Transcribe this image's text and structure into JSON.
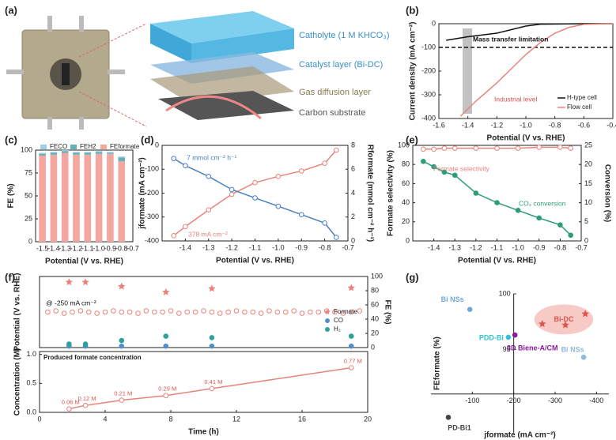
{
  "panel_labels": [
    "(a)",
    "(b)",
    "(c)",
    "(d)",
    "(e)",
    "(f)",
    "(g)"
  ],
  "panel_a": {
    "labels": [
      "Catholyte (1 M KHCO₃)",
      "Catalyst layer (Bi-DC)",
      "Gas diffusion layer",
      "Carbon substrate"
    ]
  },
  "chart_data": [
    {
      "type": "line",
      "xlabel": "Potential (V vs. RHE)",
      "ylabel": "Current density (mA cm⁻²)",
      "xlim": [
        -1.6,
        -0.4
      ],
      "xticks": [
        -1.6,
        -1.4,
        -1.2,
        {
          "value": -1,
          "label": "-1.0"
        },
        -0.8,
        -0.6,
        -0.4
      ],
      "ylim": [
        -400,
        0
      ],
      "yticks": [
        0,
        -100,
        -200,
        -300,
        -400
      ],
      "hline": -100,
      "legend": "lower right",
      "annotations": [
        "Mass transfer limitation",
        "Industrial level"
      ],
      "series": [
        {
          "name": "H-type cell",
          "color": "#111111",
          "x": [
            -1.55,
            -1.4,
            -1.2,
            -1.1,
            -1.0,
            -0.9,
            -0.6,
            -0.4
          ],
          "values": [
            -70,
            -55,
            -40,
            -25,
            -10,
            -2,
            0,
            0
          ]
        },
        {
          "name": "Flow cell",
          "color": "#e8837c",
          "x": [
            -1.45,
            -1.35,
            -1.2,
            -1.1,
            -1.0,
            -0.9,
            -0.8,
            -0.7,
            -0.6,
            -0.4
          ],
          "values": [
            -390,
            -330,
            -250,
            -190,
            -130,
            -80,
            -40,
            -15,
            -3,
            0
          ]
        }
      ]
    },
    {
      "type": "bar",
      "xlabel": "Potential (V vs. RHE)",
      "ylabel": "FE (%)",
      "x": [
        -1.5,
        -1.4,
        -1.3,
        -1.2,
        -1.1,
        -1.0,
        -0.9,
        -0.8
      ],
      "xlim": [
        -1.56,
        -0.7
      ],
      "xticks": [
        -1.5,
        -1.4,
        -1.3,
        -1.2,
        -1.1,
        {
          "value": -1,
          "label": "-1.0"
        },
        -0.9,
        -0.8,
        -0.7
      ],
      "ylim": [
        0,
        100
      ],
      "yticks": [
        0,
        25,
        50,
        75,
        100
      ],
      "legend": "upper center",
      "series": [
        {
          "name": "FECO",
          "color": "#9dd0e8",
          "values": [
            1,
            1,
            1,
            1,
            1,
            1,
            1,
            1
          ]
        },
        {
          "name": "FEH2",
          "color": "#5fb3b3",
          "values": [
            2,
            2,
            2,
            2,
            2,
            2,
            1,
            4
          ]
        },
        {
          "name": "FEformate",
          "color": "#f4a6a0",
          "values": [
            94,
            95,
            97,
            95,
            95,
            96,
            96,
            88
          ]
        }
      ]
    },
    {
      "type": "line",
      "xlabel": "Potential (V vs. RHE)",
      "ylabel": "jformate (mA cm⁻²)",
      "y2label": "Rformate (mmol cm⁻² h⁻¹)",
      "x": [
        -1.45,
        -1.4,
        -1.3,
        -1.2,
        -1.1,
        -1.0,
        -0.9,
        -0.8,
        -0.75
      ],
      "xlim": [
        -1.5,
        -0.7
      ],
      "xticks": [
        -1.4,
        -1.3,
        -1.2,
        -1.1,
        {
          "value": -1,
          "label": "-1.0"
        },
        -0.9,
        -0.8,
        -0.7
      ],
      "ylim": [
        -400,
        0
      ],
      "yticks": [
        0,
        -100,
        -200,
        -300,
        -400
      ],
      "y2lim": [
        0,
        8
      ],
      "y2ticks": [
        0,
        2,
        4,
        6,
        8
      ],
      "annotations": [
        "7 mmol cm⁻² h⁻¹",
        "378 mA cm⁻²"
      ],
      "series": [
        {
          "color": "#e8837c",
          "marker": "open-circle",
          "values": [
            -378,
            -340,
            -270,
            -205,
            -156,
            -130,
            -107,
            -75,
            -20
          ]
        },
        {
          "color": "#4a7fc1",
          "marker": "open-circle",
          "axis": "y2",
          "values": [
            6.9,
            6.3,
            5.4,
            4.3,
            3.6,
            2.9,
            2.2,
            1.5,
            0.3
          ]
        }
      ]
    },
    {
      "type": "line",
      "xlabel": "Potential (V vs. RHE)",
      "ylabel": "Formate selectivity (%)",
      "y2label": "Conversion (%)",
      "x": [
        -1.45,
        -1.4,
        -1.35,
        -1.3,
        -1.2,
        -1.1,
        -1.0,
        -0.9,
        -0.8,
        -0.75
      ],
      "xlim": [
        -1.5,
        -0.7
      ],
      "xticks": [
        -1.4,
        -1.3,
        -1.2,
        -1.1,
        {
          "value": -1,
          "label": "-1.0"
        },
        -0.9,
        -0.8,
        -0.7
      ],
      "ylim": [
        0,
        100
      ],
      "yticks": [
        0,
        20,
        40,
        60,
        80,
        100
      ],
      "y2lim": [
        0,
        25
      ],
      "y2ticks": [
        0,
        5,
        10,
        15,
        20,
        25
      ],
      "annotations": [
        "Formate selectivity",
        "CO₂ conversion"
      ],
      "series": [
        {
          "color": "#e8837c",
          "marker": "open-circle",
          "values": [
            96,
            96,
            97,
            97,
            97,
            97,
            97,
            98,
            98,
            97
          ]
        },
        {
          "color": "#2e9c7a",
          "marker": "circle",
          "axis": "y2",
          "values": [
            20.8,
            19.4,
            18,
            17.2,
            12.5,
            10,
            8,
            6,
            4.2,
            1.5
          ]
        }
      ]
    },
    {
      "type": "scatter",
      "ylabel": "Potential (V vs. RHE)",
      "y2label": "FE (%)",
      "xlim": [
        0,
        20
      ],
      "ylim": [
        -3,
        0
      ],
      "y2lim": [
        0,
        100
      ],
      "y2ticks": [
        0,
        20,
        40,
        60,
        80,
        100
      ],
      "legend": "right",
      "annotations": [
        "@ -250 mA cm⁻²"
      ],
      "series": [
        {
          "color": "#e8837c",
          "marker": "open-circle",
          "x": [
            0.5,
            1,
            1.5,
            2,
            2.5,
            3,
            3.5,
            4,
            4.5,
            5,
            5.5,
            6,
            6.5,
            7,
            7.5,
            8,
            8.5,
            9,
            9.5,
            10,
            10.5,
            11,
            11.5,
            12,
            12.5,
            13,
            13.5,
            14,
            14.5,
            15,
            15.5,
            16,
            16.5,
            17,
            17.5,
            18,
            18.5,
            19,
            19.5
          ],
          "values": [
            -1.5,
            -1.45,
            -1.55,
            -1.5,
            -1.45,
            -1.5,
            -1.55,
            -1.5,
            -1.45,
            -1.5,
            -1.5,
            -1.55,
            -1.45,
            -1.5,
            -1.5,
            -1.45,
            -1.55,
            -1.5,
            -1.5,
            -1.45,
            -1.5,
            -1.55,
            -1.5,
            -1.45,
            -1.5,
            -1.5,
            -1.55,
            -1.45,
            -1.5,
            -1.5,
            -1.45,
            -1.55,
            -1.5,
            -1.5,
            -1.45,
            -1.5,
            -1.55,
            -1.5,
            -1.45
          ]
        },
        {
          "name": "Formate",
          "color": "#e8837c",
          "marker": "star",
          "axis": "y2",
          "x": [
            1.8,
            2.8,
            5,
            7.7,
            10.5,
            19
          ],
          "values": [
            92,
            92,
            86,
            78,
            83,
            84
          ]
        },
        {
          "name": "CO",
          "color": "#4f8fd0",
          "marker": "circle",
          "axis": "y2",
          "x": [
            1.8,
            2.8,
            5,
            7.7,
            10.5,
            19
          ],
          "values": [
            2,
            2,
            2,
            2,
            2,
            2
          ]
        },
        {
          "name": "H₂",
          "color": "#2aa39a",
          "marker": "circle",
          "axis": "y2",
          "x": [
            1.8,
            2.8,
            5,
            7.7,
            10.5,
            19
          ],
          "values": [
            5,
            5,
            10,
            16,
            14,
            16
          ]
        }
      ]
    },
    {
      "type": "line",
      "title": "Produced formate concentration",
      "xlabel": "Time (h)",
      "ylabel": "Concentration (M)",
      "xlim": [
        0,
        20
      ],
      "xticks": [
        0,
        4,
        8,
        12,
        16,
        20
      ],
      "ylim": [
        0,
        1.05
      ],
      "yticks": [
        {
          "value": 0,
          "label": "0.0"
        },
        0.5,
        {
          "value": 1,
          "label": "1.0"
        }
      ],
      "series": [
        {
          "color": "#e8837c",
          "marker": "open-circle",
          "x": [
            1.8,
            2.8,
            5,
            7.7,
            10.5,
            19
          ],
          "values": [
            0.06,
            0.12,
            0.21,
            0.29,
            0.41,
            0.77
          ],
          "value_labels": [
            "0.06 M",
            "0.12 M",
            "0.21 M",
            "0.29 M",
            "0.41 M",
            "0.77 M"
          ]
        }
      ]
    },
    {
      "type": "scatter",
      "xlabel": "jformate (mA cm⁻²)",
      "ylabel": "FEformate (%)",
      "xlim": [
        0,
        -430
      ],
      "xticks": [
        -100,
        -200,
        -300,
        -400
      ],
      "ylim": [
        87.5,
        100
      ],
      "yticks": [
        95,
        100
      ],
      "axis_cross": {
        "x": -200,
        "y": 91
      },
      "point_labels": true,
      "series": [
        {
          "name": "Bi NSs",
          "color": "#6fa8dc",
          "marker": "circle",
          "x": [
            -94
          ],
          "values": [
            98.6
          ]
        },
        {
          "name": "PD-Bi1",
          "color": "#444444",
          "marker": "circle",
          "x": [
            -42
          ],
          "values": [
            88.9
          ]
        },
        {
          "name": "PDD-Bi",
          "color": "#2ec4d6",
          "marker": "circle",
          "x": [
            -187
          ],
          "values": [
            96.1
          ]
        },
        {
          "name": "3D Biene-A/CM",
          "color": "#8b1a9b",
          "marker": "circle",
          "x": [
            -203
          ],
          "values": [
            96.3
          ]
        },
        {
          "name": "Bi-DC",
          "color": "#d9534f",
          "marker": "star",
          "x": [
            -269,
            -373,
            -325
          ],
          "values": [
            97.3,
            98.2,
            97.2
          ]
        },
        {
          "name": "Bi NSs",
          "color": "#8fb8dc",
          "marker": "circle",
          "x": [
            -369
          ],
          "values": [
            94.3
          ]
        }
      ]
    }
  ]
}
